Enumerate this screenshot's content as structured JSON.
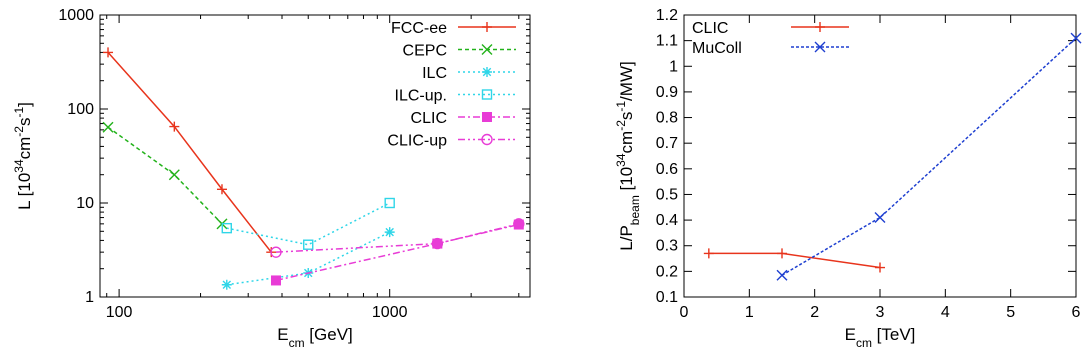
{
  "chart_data": [
    {
      "type": "line",
      "xscale": "log",
      "yscale": "log",
      "xlim": [
        85,
        3300
      ],
      "ylim": [
        1,
        1000
      ],
      "x_ticks": [
        100,
        1000
      ],
      "x_tick_labels": [
        "100",
        "1000"
      ],
      "y_ticks": [
        1,
        10,
        100,
        1000
      ],
      "y_tick_labels": [
        "1",
        "10",
        "100",
        "1000"
      ],
      "xlabel": {
        "main": "E",
        "sub": "cm",
        "rest": " [GeV]"
      },
      "ylabel": {
        "main": "L [10",
        "sup1": "34",
        "mid": "cm",
        "sup2": "-2",
        "mid2": "s",
        "sup3": "-1",
        "end": "]"
      },
      "legend_position": "top-right",
      "grid": false,
      "series": [
        {
          "name": "FCC-ee",
          "color": "#e8341c",
          "marker": "plus",
          "dash": "",
          "points": [
            [
              91,
              400
            ],
            [
              160,
              65
            ],
            [
              240,
              14
            ],
            [
              365,
              3
            ]
          ]
        },
        {
          "name": "CEPC",
          "color": "#22b21a",
          "marker": "cross",
          "dash": "4,3",
          "points": [
            [
              91,
              64
            ],
            [
              160,
              20
            ],
            [
              240,
              6
            ]
          ]
        },
        {
          "name": "ILC",
          "color": "#2fd6e8",
          "marker": "star",
          "dash": "2,3",
          "points": [
            [
              250,
              1.35
            ],
            [
              500,
              1.8
            ],
            [
              1000,
              4.9
            ]
          ]
        },
        {
          "name": "ILC-up.",
          "color": "#2fd6e8",
          "marker": "square-open",
          "dash": "2,3",
          "points": [
            [
              250,
              5.4
            ],
            [
              500,
              3.6
            ],
            [
              1000,
              10
            ]
          ]
        },
        {
          "name": "CLIC",
          "color": "#e83cd6",
          "marker": "square-filled",
          "dash": "7,3,2,3",
          "points": [
            [
              380,
              1.5
            ],
            [
              1500,
              3.7
            ],
            [
              3000,
              5.9
            ]
          ]
        },
        {
          "name": "CLIC-up",
          "color": "#e83cd6",
          "marker": "circle-open",
          "dash": "7,3,2,3,2,3",
          "points": [
            [
              380,
              3
            ],
            [
              1500,
              3.7
            ],
            [
              3000,
              6
            ]
          ]
        }
      ]
    },
    {
      "type": "line",
      "xlim": [
        0,
        6
      ],
      "ylim": [
        0.1,
        1.2
      ],
      "x_ticks": [
        0,
        1,
        2,
        3,
        4,
        5,
        6
      ],
      "x_tick_labels": [
        "0",
        "1",
        "2",
        "3",
        "4",
        "5",
        "6"
      ],
      "y_ticks": [
        0.1,
        0.2,
        0.3,
        0.4,
        0.5,
        0.6,
        0.7,
        0.8,
        0.9,
        1,
        1.1,
        1.2
      ],
      "y_tick_labels": [
        "0.1",
        "0.2",
        "0.3",
        "0.4",
        "0.5",
        "0.6",
        "0.7",
        "0.8",
        "0.9",
        "1",
        "1.1",
        "1.2"
      ],
      "xlabel": {
        "main": "E",
        "sub": "cm",
        "rest": " [TeV]"
      },
      "ylabel": {
        "main": "L/P",
        "sub": "beam",
        "mid": " [10",
        "sup1": "34",
        "mid2": "cm",
        "sup2": "-2",
        "mid3": "s",
        "sup3": "-1",
        "end": "/MW]"
      },
      "legend_position": "top-left",
      "grid": false,
      "series": [
        {
          "name": "CLIC",
          "color": "#e8341c",
          "marker": "plus",
          "dash": "",
          "points": [
            [
              0.38,
              0.27
            ],
            [
              1.5,
              0.27
            ],
            [
              3,
              0.215
            ]
          ]
        },
        {
          "name": "MuColl",
          "color": "#1e3fd0",
          "marker": "cross",
          "dash": "3,2",
          "points": [
            [
              1.5,
              0.185
            ],
            [
              3,
              0.41
            ],
            [
              6,
              1.11
            ]
          ]
        }
      ]
    }
  ]
}
